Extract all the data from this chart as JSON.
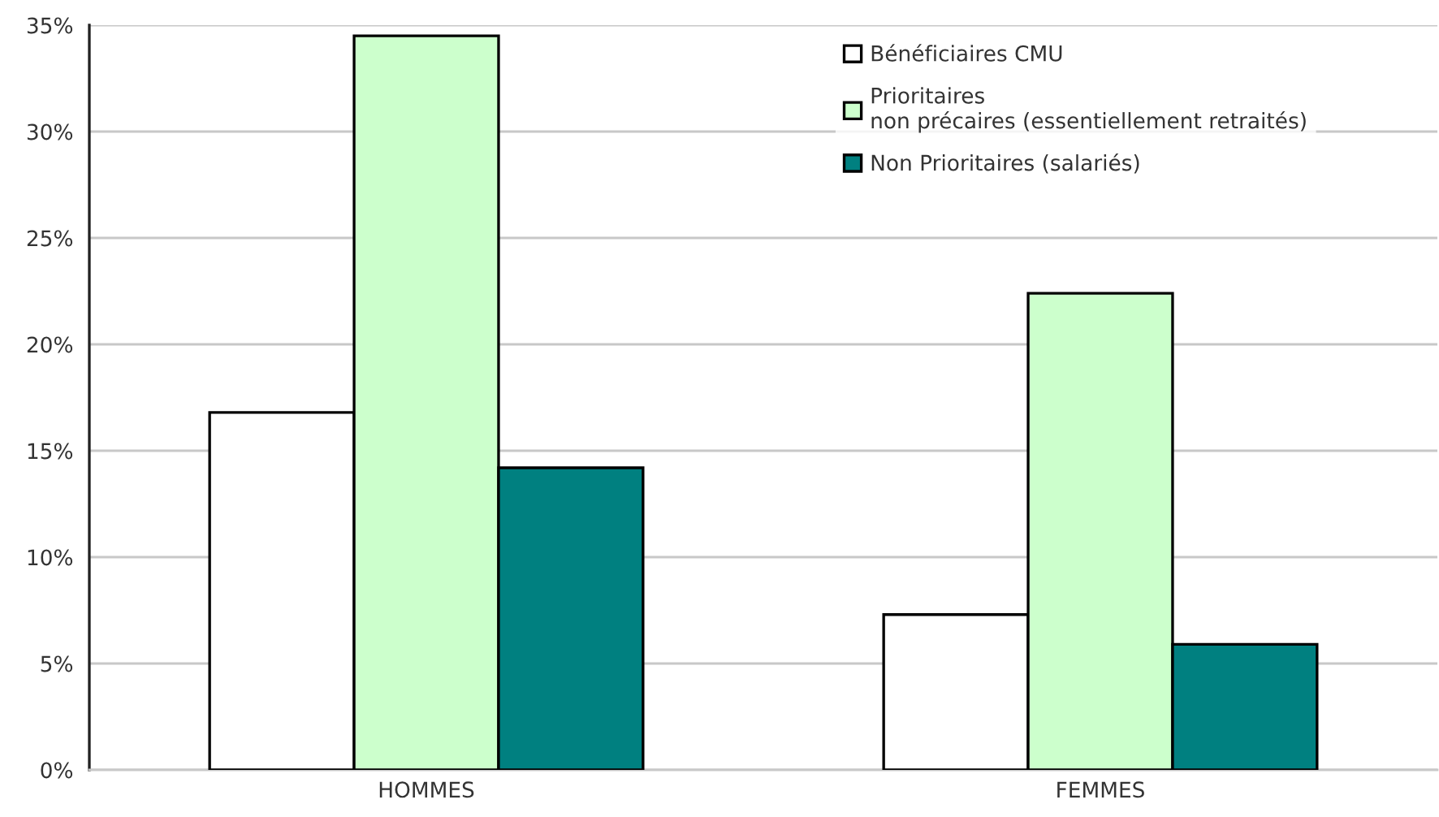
{
  "chart_data": {
    "type": "bar",
    "categories": [
      "HOMMES",
      "FEMMES"
    ],
    "series": [
      {
        "name": "Bénéficiaires CMU",
        "color": "#ffffff",
        "values": [
          16.8,
          7.3
        ]
      },
      {
        "name": "Prioritaires\nnon précaires (essentiellement retraités)",
        "color": "#ccffcc",
        "values": [
          34.5,
          22.4
        ]
      },
      {
        "name": "Non Prioritaires (salariés)",
        "color": "#008080",
        "values": [
          14.2,
          5.9
        ]
      }
    ],
    "ylim": [
      0,
      35
    ],
    "yticks": [
      {
        "value": 0,
        "label": "0%"
      },
      {
        "value": 5,
        "label": "5%"
      },
      {
        "value": 10,
        "label": "10%"
      },
      {
        "value": 15,
        "label": "15%"
      },
      {
        "value": 20,
        "label": "20%"
      },
      {
        "value": 25,
        "label": "25%"
      },
      {
        "value": 30,
        "label": "30%"
      },
      {
        "value": 35,
        "label": "35%"
      }
    ],
    "grid": "y",
    "legend": "top right"
  }
}
